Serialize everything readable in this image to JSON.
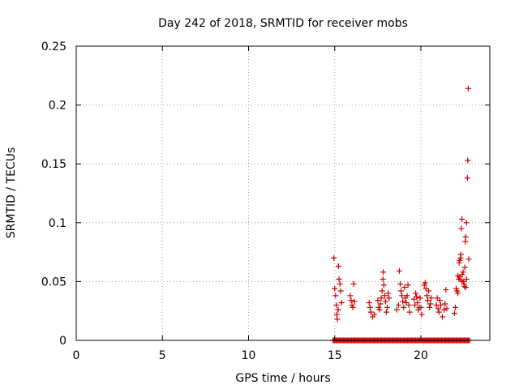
{
  "chart_data": {
    "type": "scatter",
    "title": "Day 242 of 2018, SRMTID for receiver mobs",
    "xlabel": "GPS time / hours",
    "ylabel": "SRMTID / TECUs",
    "xlim": [
      0,
      24
    ],
    "ylim": [
      0,
      0.25
    ],
    "xticks": [
      "0",
      "5",
      "10",
      "15",
      "20"
    ],
    "xtick_values": [
      0,
      5,
      10,
      15,
      20
    ],
    "yticks": [
      "0",
      "0.05",
      "0.1",
      "0.15",
      "0.2",
      "0.25"
    ],
    "ytick_values": [
      0,
      0.05,
      0.1,
      0.15,
      0.2,
      0.25
    ],
    "grid": true,
    "series": [
      {
        "name": "SRMTID",
        "color": "#cc0000",
        "marker": "plus",
        "zero_range": [
          14.9,
          22.85
        ],
        "zero_step": 0.06,
        "points": [
          [
            14.95,
            0.07
          ],
          [
            15.0,
            0.044
          ],
          [
            15.05,
            0.038
          ],
          [
            15.1,
            0.03
          ],
          [
            15.12,
            0.022
          ],
          [
            15.15,
            0.018
          ],
          [
            15.2,
            0.026
          ],
          [
            15.22,
            0.063
          ],
          [
            15.25,
            0.052
          ],
          [
            15.3,
            0.048
          ],
          [
            15.35,
            0.042
          ],
          [
            15.4,
            0.032
          ],
          [
            15.9,
            0.038
          ],
          [
            15.95,
            0.034
          ],
          [
            16.0,
            0.03
          ],
          [
            16.05,
            0.028
          ],
          [
            16.1,
            0.048
          ],
          [
            16.15,
            0.033
          ],
          [
            17.0,
            0.032
          ],
          [
            17.05,
            0.028
          ],
          [
            17.1,
            0.024
          ],
          [
            17.2,
            0.02
          ],
          [
            17.3,
            0.022
          ],
          [
            17.5,
            0.034
          ],
          [
            17.55,
            0.028
          ],
          [
            17.6,
            0.026
          ],
          [
            17.65,
            0.031
          ],
          [
            17.7,
            0.036
          ],
          [
            17.75,
            0.042
          ],
          [
            17.8,
            0.052
          ],
          [
            17.82,
            0.058
          ],
          [
            17.85,
            0.047
          ],
          [
            17.9,
            0.038
          ],
          [
            17.95,
            0.033
          ],
          [
            18.0,
            0.024
          ],
          [
            18.05,
            0.028
          ],
          [
            18.1,
            0.04
          ],
          [
            18.15,
            0.036
          ],
          [
            18.6,
            0.026
          ],
          [
            18.7,
            0.03
          ],
          [
            18.75,
            0.059
          ],
          [
            18.8,
            0.048
          ],
          [
            18.85,
            0.042
          ],
          [
            18.9,
            0.038
          ],
          [
            18.95,
            0.033
          ],
          [
            19.0,
            0.028
          ],
          [
            19.05,
            0.045
          ],
          [
            19.1,
            0.036
          ],
          [
            19.15,
            0.032
          ],
          [
            19.2,
            0.038
          ],
          [
            19.25,
            0.047
          ],
          [
            19.3,
            0.03
          ],
          [
            19.35,
            0.024
          ],
          [
            19.6,
            0.035
          ],
          [
            19.65,
            0.03
          ],
          [
            19.7,
            0.04
          ],
          [
            19.75,
            0.037
          ],
          [
            19.8,
            0.032
          ],
          [
            19.85,
            0.026
          ],
          [
            19.9,
            0.028
          ],
          [
            19.95,
            0.036
          ],
          [
            20.0,
            0.028
          ],
          [
            20.05,
            0.022
          ],
          [
            20.2,
            0.047
          ],
          [
            20.25,
            0.049
          ],
          [
            20.3,
            0.044
          ],
          [
            20.35,
            0.038
          ],
          [
            20.4,
            0.034
          ],
          [
            20.45,
            0.042
          ],
          [
            20.5,
            0.028
          ],
          [
            20.55,
            0.031
          ],
          [
            20.6,
            0.036
          ],
          [
            20.9,
            0.03
          ],
          [
            20.95,
            0.036
          ],
          [
            21.0,
            0.027
          ],
          [
            21.05,
            0.024
          ],
          [
            21.1,
            0.034
          ],
          [
            21.15,
            0.03
          ],
          [
            21.25,
            0.02
          ],
          [
            21.35,
            0.026
          ],
          [
            21.4,
            0.031
          ],
          [
            21.45,
            0.043
          ],
          [
            21.5,
            0.027
          ],
          [
            21.95,
            0.023
          ],
          [
            22.0,
            0.028
          ],
          [
            22.05,
            0.044
          ],
          [
            22.1,
            0.042
          ],
          [
            22.15,
            0.055
          ],
          [
            22.2,
            0.052
          ],
          [
            22.22,
            0.066
          ],
          [
            22.25,
            0.068
          ],
          [
            22.3,
            0.07
          ],
          [
            22.32,
            0.073
          ],
          [
            22.35,
            0.095
          ],
          [
            22.38,
            0.103
          ],
          [
            22.4,
            0.056
          ],
          [
            22.45,
            0.05
          ],
          [
            22.5,
            0.048
          ],
          [
            22.52,
            0.046
          ],
          [
            22.55,
            0.062
          ],
          [
            22.58,
            0.084
          ],
          [
            22.6,
            0.088
          ],
          [
            22.65,
            0.1
          ],
          [
            22.7,
            0.138
          ],
          [
            22.72,
            0.153
          ],
          [
            22.75,
            0.214
          ],
          [
            22.78,
            0.069
          ],
          [
            22.6,
            0.045
          ],
          [
            22.45,
            0.058
          ],
          [
            22.35,
            0.051
          ],
          [
            22.25,
            0.054
          ],
          [
            22.15,
            0.04
          ],
          [
            22.65,
            0.052
          ]
        ]
      }
    ]
  }
}
